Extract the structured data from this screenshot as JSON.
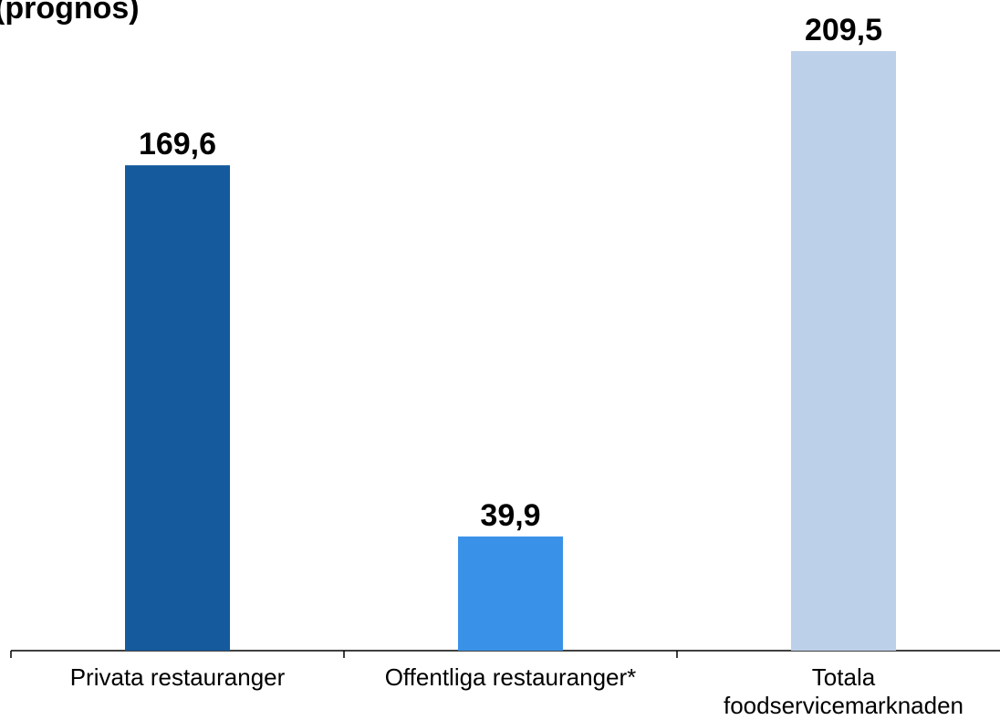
{
  "chart_data": {
    "type": "bar",
    "title": "(prognos)",
    "categories": [
      "Privata restauranger",
      "Offentliga restauranger*",
      "Totala\nfoodservicemarknaden"
    ],
    "values": [
      169.6,
      39.9,
      209.5
    ],
    "value_labels": [
      "169,6",
      "39,9",
      "209,5"
    ],
    "colors": [
      "#155a9c",
      "#3a92e8",
      "#bdd0e9"
    ]
  }
}
